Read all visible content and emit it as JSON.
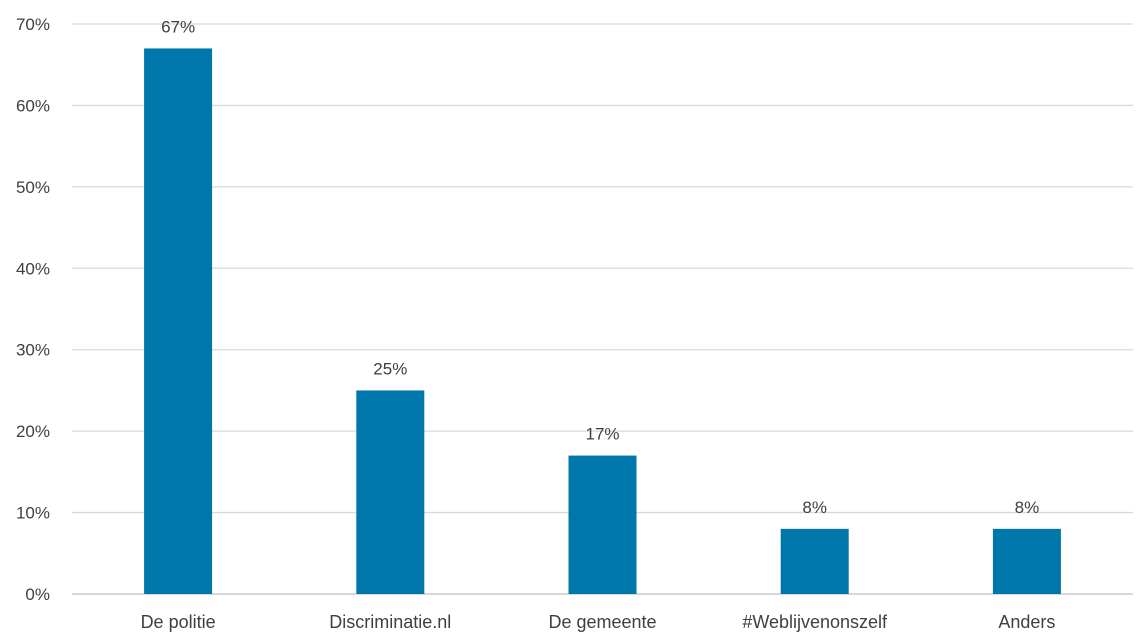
{
  "chart_data": {
    "type": "bar",
    "categories": [
      "De politie",
      "Discriminatie.nl",
      "De gemeente",
      "#Weblijvenonszelf",
      "Anders"
    ],
    "values": [
      67,
      25,
      17,
      8,
      8
    ],
    "data_labels": [
      "67%",
      "25%",
      "17%",
      "8%",
      "8%"
    ],
    "title": "",
    "xlabel": "",
    "ylabel": "",
    "ylim": [
      0,
      70
    ],
    "y_ticks": [
      0,
      10,
      20,
      30,
      40,
      50,
      60,
      70
    ],
    "y_tick_labels": [
      "0%",
      "10%",
      "20%",
      "30%",
      "40%",
      "50%",
      "60%",
      "70%"
    ],
    "grid": true,
    "legend": "none",
    "bar_color": "#0077AA"
  }
}
